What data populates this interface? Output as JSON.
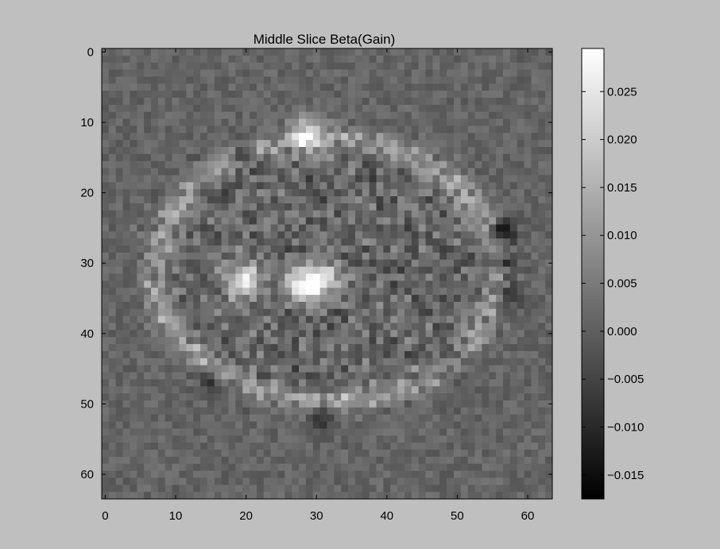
{
  "chart_data": {
    "type": "heatmap",
    "title": "Middle Slice Beta(Gain)",
    "colormap": "gray",
    "grid": false,
    "x_ticks": [
      "0",
      "10",
      "20",
      "30",
      "40",
      "50",
      "60"
    ],
    "y_ticks": [
      "0",
      "10",
      "20",
      "30",
      "40",
      "50",
      "60"
    ],
    "xlim": [
      -0.5,
      63.5
    ],
    "ylim": [
      63.5,
      -0.5
    ],
    "image_size": [
      64,
      64
    ],
    "colorbar": {
      "min": -0.0175,
      "max": 0.0295,
      "ticks": [
        -0.015,
        -0.01,
        -0.005,
        0.0,
        0.005,
        0.01,
        0.015,
        0.02,
        0.025
      ],
      "tick_labels": [
        "−0.015",
        "−0.010",
        "−0.005",
        "0.000",
        "0.005",
        "0.010",
        "0.015",
        "0.020",
        "0.025"
      ]
    },
    "features": {
      "background_value": 0.001,
      "ring": {
        "center_x": 31.5,
        "center_y": 31,
        "radius_x": 26,
        "radius_y": 20,
        "value": 0.011
      },
      "bright_spots": [
        {
          "x": 19.5,
          "y": 32.5,
          "value": 0.028
        },
        {
          "x": 28,
          "y": 33,
          "value": 0.026
        },
        {
          "x": 31,
          "y": 32.5,
          "value": 0.022
        },
        {
          "x": 28.5,
          "y": 11.5,
          "value": 0.018
        }
      ],
      "dark_spots": [
        {
          "x": 56.5,
          "y": 25.5,
          "value": -0.015
        },
        {
          "x": 57,
          "y": 34.5,
          "value": -0.013
        },
        {
          "x": 57,
          "y": 30,
          "value": -0.01
        },
        {
          "x": 15,
          "y": 46.5,
          "value": -0.009
        },
        {
          "x": 30.5,
          "y": 52,
          "value": -0.009
        },
        {
          "x": 19.5,
          "y": 15,
          "value": -0.008
        },
        {
          "x": 15,
          "y": 20,
          "value": -0.007
        },
        {
          "x": 49.5,
          "y": 43,
          "value": -0.007
        }
      ]
    }
  }
}
